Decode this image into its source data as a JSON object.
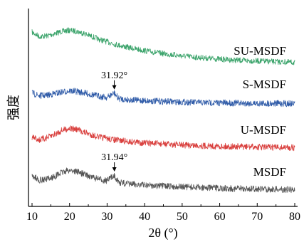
{
  "chart_data": {
    "type": "line",
    "xlabel": "2θ (°)",
    "ylabel": "强度",
    "xlim": [
      10,
      80
    ],
    "xticks": [
      10,
      20,
      30,
      40,
      50,
      60,
      70,
      80
    ],
    "yticks": "none",
    "grid": false,
    "legend": "inline labels at right of each trace",
    "annotations": [
      {
        "text": "31.92°",
        "x": 31.92,
        "series": "S-MSDF",
        "marker": "arrow-down"
      },
      {
        "text": "31.94°",
        "x": 31.94,
        "series": "MSDF",
        "marker": "arrow-down"
      }
    ],
    "series": [
      {
        "name": "SU-MSDF",
        "color": "#3aa36a",
        "x": [
          10,
          12,
          14,
          16,
          18,
          20,
          22,
          24,
          26,
          28,
          30,
          32,
          35,
          40,
          45,
          50,
          55,
          60,
          65,
          70,
          75,
          80
        ],
        "y": [
          0.9,
          0.78,
          0.8,
          0.86,
          0.92,
          0.95,
          0.92,
          0.86,
          0.78,
          0.7,
          0.64,
          0.58,
          0.5,
          0.4,
          0.32,
          0.26,
          0.21,
          0.17,
          0.14,
          0.12,
          0.1,
          0.08
        ]
      },
      {
        "name": "S-MSDF",
        "color": "#2f5ba8",
        "x": [
          10,
          12,
          14,
          16,
          18,
          20,
          22,
          24,
          26,
          28,
          30,
          31.92,
          33,
          35,
          40,
          45,
          50,
          55,
          60,
          65,
          70,
          75,
          80
        ],
        "y": [
          0.4,
          0.3,
          0.32,
          0.38,
          0.44,
          0.48,
          0.46,
          0.4,
          0.34,
          0.28,
          0.24,
          0.4,
          0.2,
          0.16,
          0.12,
          0.09,
          0.07,
          0.05,
          0.04,
          0.03,
          0.02,
          0.02,
          0.01
        ]
      },
      {
        "name": "U-MSDF",
        "color": "#d9403e",
        "x": [
          10,
          12,
          14,
          16,
          18,
          20,
          22,
          24,
          26,
          28,
          30,
          32,
          35,
          40,
          45,
          50,
          55,
          60,
          65,
          70,
          75,
          80
        ],
        "y": [
          0.32,
          0.24,
          0.3,
          0.4,
          0.52,
          0.58,
          0.54,
          0.46,
          0.38,
          0.32,
          0.28,
          0.24,
          0.2,
          0.15,
          0.12,
          0.09,
          0.07,
          0.05,
          0.04,
          0.03,
          0.02,
          0.01
        ]
      },
      {
        "name": "MSDF",
        "color": "#555555",
        "x": [
          10,
          12,
          14,
          16,
          18,
          20,
          22,
          24,
          26,
          28,
          30,
          31.94,
          33,
          35,
          40,
          45,
          50,
          55,
          60,
          65,
          70,
          75,
          80
        ],
        "y": [
          0.42,
          0.3,
          0.32,
          0.4,
          0.52,
          0.58,
          0.54,
          0.46,
          0.38,
          0.32,
          0.28,
          0.44,
          0.24,
          0.2,
          0.16,
          0.13,
          0.11,
          0.09,
          0.07,
          0.06,
          0.05,
          0.04,
          0.03
        ]
      }
    ]
  }
}
